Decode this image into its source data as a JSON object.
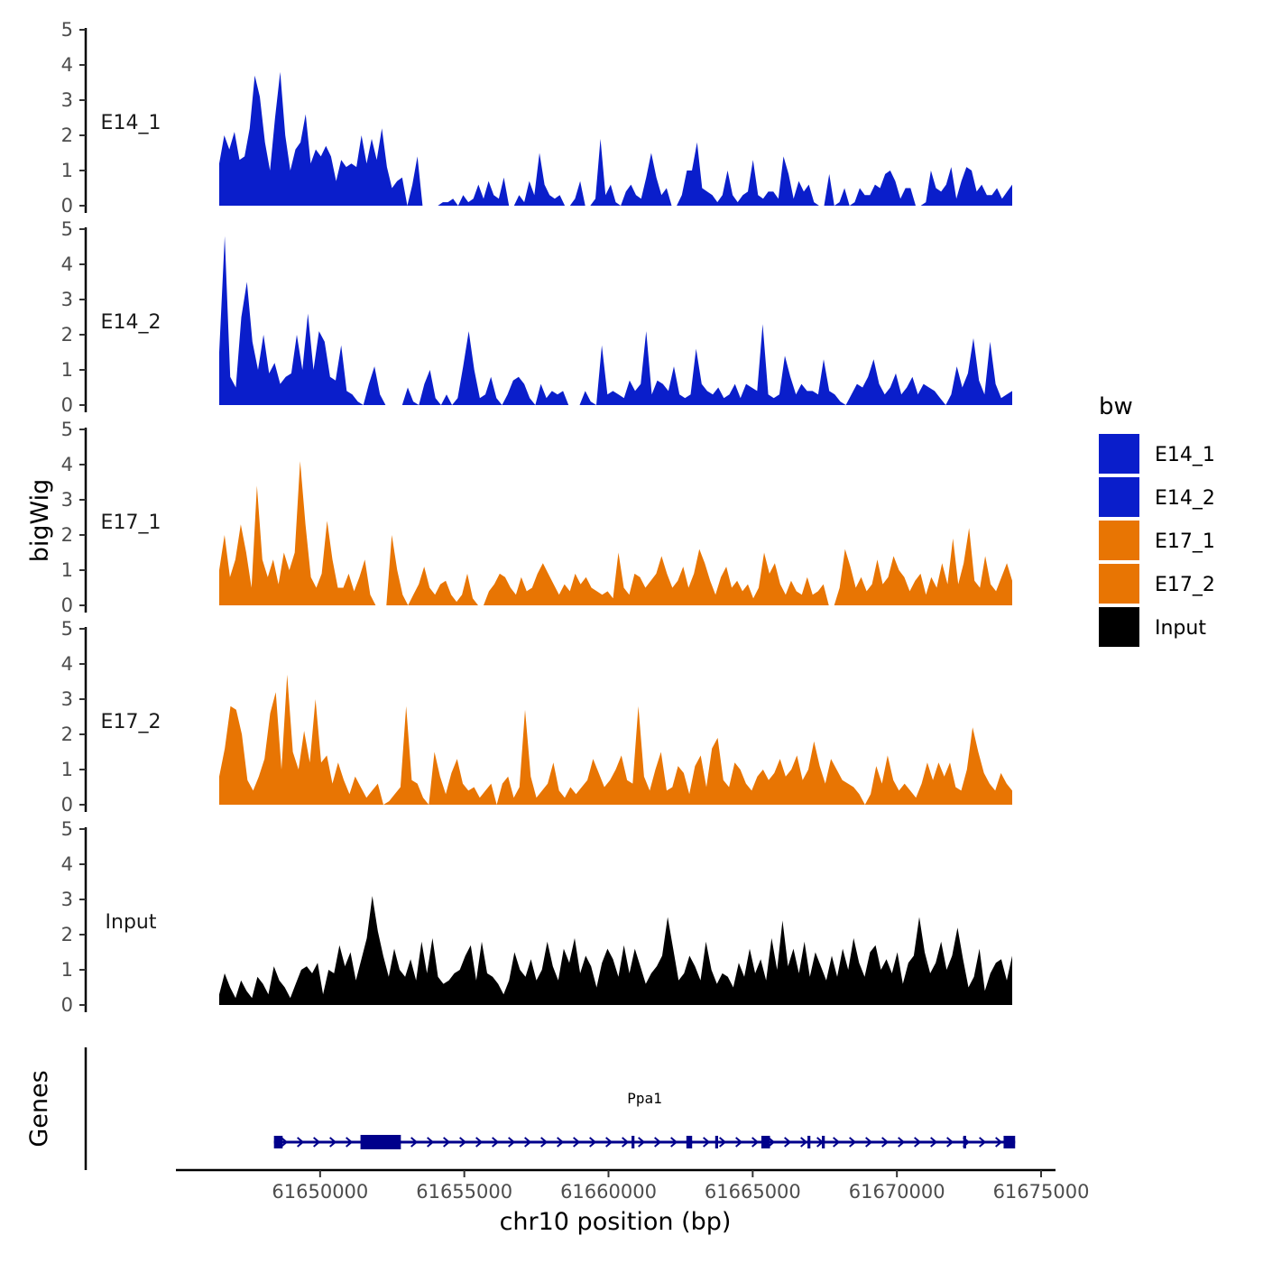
{
  "chart_data": {
    "type": "area",
    "ylabel": "bigWig",
    "xlabel": "chr10 position (bp)",
    "ylim": [
      0,
      5
    ],
    "yticks": [
      "0",
      "1",
      "2",
      "3",
      "4",
      "5"
    ],
    "xlim": [
      61645000,
      61675500
    ],
    "x_start": 61646500,
    "x_end": 61674000,
    "xticks": [
      61650000,
      61655000,
      61660000,
      61665000,
      61670000,
      61675000
    ],
    "xtick_labels": [
      "61650000",
      "61655000",
      "61660000",
      "61665000",
      "61670000",
      "61675000"
    ],
    "legend": {
      "title": "bw",
      "position": "right",
      "entries": [
        {
          "label": "E14_1",
          "color": "#0A1ECB"
        },
        {
          "label": "E14_2",
          "color": "#0A1ECB"
        },
        {
          "label": "E17_1",
          "color": "#E87503"
        },
        {
          "label": "E17_2",
          "color": "#E87503"
        },
        {
          "label": "Input",
          "color": "#000000"
        }
      ]
    },
    "series": [
      {
        "name": "E14_1",
        "color": "#0A1ECB",
        "values": [
          1.2,
          2.0,
          1.6,
          2.1,
          1.3,
          1.4,
          2.2,
          3.7,
          3.1,
          1.8,
          1.0,
          2.5,
          3.8,
          2.0,
          1.0,
          1.6,
          1.8,
          2.6,
          1.2,
          1.6,
          1.4,
          1.7,
          1.4,
          0.7,
          1.3,
          1.1,
          1.2,
          1.1,
          2.0,
          1.2,
          1.9,
          1.3,
          2.2,
          1.1,
          0.5,
          0.7,
          0.8,
          0,
          0.6,
          1.4,
          0,
          0,
          0,
          0,
          0.1,
          0.1,
          0.2,
          0,
          0.3,
          0.1,
          0.2,
          0.6,
          0.2,
          0.7,
          0.3,
          0.2,
          0.8,
          0,
          0,
          0.3,
          0.1,
          0.7,
          0.3,
          1.5,
          0.6,
          0.3,
          0.2,
          0.3,
          0,
          0,
          0.2,
          0.7,
          0,
          0,
          0.2,
          1.9,
          0.3,
          0.6,
          0.1,
          0,
          0.4,
          0.6,
          0.3,
          0.2,
          0.8,
          1.5,
          0.8,
          0.3,
          0.5,
          0,
          0,
          0.3,
          1.0,
          1.0,
          1.8,
          0.5,
          0.4,
          0.3,
          0.1,
          0.3,
          1.0,
          0.3,
          0.1,
          0.3,
          0.4,
          1.3,
          0.3,
          0.2,
          0.4,
          0.4,
          0.2,
          1.4,
          0.9,
          0.2,
          0.7,
          0.4,
          0.6,
          0.1,
          0,
          0,
          0.9,
          0,
          0.1,
          0.5,
          0,
          0.1,
          0.5,
          0.3,
          0.3,
          0.6,
          0.5,
          0.9,
          1.0,
          0.7,
          0.2,
          0.5,
          0.5,
          0,
          0,
          0.1,
          1.0,
          0.5,
          0.4,
          0.6,
          1.1,
          0.2,
          0.7,
          1.1,
          1.0,
          0.4,
          0.6,
          0.3,
          0.3,
          0.5,
          0.2,
          0.4,
          0.6
        ]
      },
      {
        "name": "E14_2",
        "color": "#0A1ECB",
        "values": [
          1.5,
          4.8,
          0.8,
          0.5,
          2.5,
          3.5,
          1.8,
          1.0,
          2.0,
          0.9,
          1.2,
          0.6,
          0.8,
          0.9,
          2.0,
          1.0,
          2.6,
          1.0,
          2.1,
          1.8,
          0.8,
          0.7,
          1.7,
          0.4,
          0.3,
          0.1,
          0,
          0.6,
          1.1,
          0.3,
          0,
          0,
          0,
          0,
          0.5,
          0.1,
          0,
          0.6,
          1.0,
          0.2,
          0,
          0.3,
          0,
          0.2,
          1.1,
          2.1,
          1.0,
          0.2,
          0.3,
          0.8,
          0.2,
          0,
          0.3,
          0.7,
          0.8,
          0.6,
          0.2,
          0,
          0.6,
          0.2,
          0.4,
          0.3,
          0.4,
          0,
          0,
          0,
          0.4,
          0.1,
          0,
          1.7,
          0.3,
          0.4,
          0.3,
          0.2,
          0.7,
          0.4,
          0.6,
          2.1,
          0.3,
          0.7,
          0.6,
          0.4,
          1.1,
          0.3,
          0.2,
          0.3,
          1.6,
          0.6,
          0.4,
          0.3,
          0.5,
          0.2,
          0.3,
          0.6,
          0.2,
          0.6,
          0.5,
          0.4,
          2.3,
          0.3,
          0.2,
          0.3,
          1.4,
          0.8,
          0.3,
          0.6,
          0.4,
          0.4,
          0.3,
          1.3,
          0.4,
          0.3,
          0.1,
          0,
          0.3,
          0.6,
          0.5,
          0.8,
          1.3,
          0.6,
          0.3,
          0.5,
          0.9,
          0.3,
          0.5,
          0.8,
          0.3,
          0.6,
          0.5,
          0.4,
          0.2,
          0,
          0.3,
          1.1,
          0.5,
          0.9,
          1.9,
          0.7,
          0.3,
          1.8,
          0.6,
          0.2,
          0.3,
          0.4
        ]
      },
      {
        "name": "E17_1",
        "color": "#E87503",
        "values": [
          1.0,
          2.0,
          0.8,
          1.3,
          2.3,
          1.5,
          0.5,
          3.4,
          1.3,
          0.8,
          1.3,
          0.6,
          1.5,
          1.0,
          1.5,
          4.1,
          2.3,
          0.8,
          0.5,
          0.9,
          2.4,
          1.3,
          0.5,
          0.5,
          0.9,
          0.4,
          0.8,
          1.3,
          0.3,
          0,
          0,
          0,
          2.0,
          1.0,
          0.3,
          0,
          0.3,
          0.6,
          1.1,
          0.5,
          0.3,
          0.6,
          0.7,
          0.3,
          0.1,
          0.3,
          0.9,
          0.2,
          0,
          0,
          0.4,
          0.6,
          0.9,
          0.8,
          0.5,
          0.3,
          0.8,
          0.4,
          0.5,
          0.9,
          1.2,
          0.9,
          0.6,
          0.3,
          0.6,
          0.4,
          0.9,
          0.6,
          0.8,
          0.5,
          0.4,
          0.3,
          0.4,
          0.2,
          1.5,
          0.5,
          0.3,
          0.9,
          0.8,
          0.5,
          0.7,
          0.9,
          1.4,
          0.9,
          0.5,
          0.7,
          1.1,
          0.5,
          0.9,
          1.6,
          1.2,
          0.7,
          0.3,
          0.8,
          1.1,
          0.5,
          0.7,
          0.4,
          0.6,
          0.2,
          0.5,
          1.5,
          0.9,
          1.2,
          0.6,
          0.3,
          0.7,
          0.4,
          0.3,
          0.8,
          0.3,
          0.4,
          0.6,
          0,
          0,
          0.5,
          1.6,
          1.1,
          0.5,
          0.8,
          0.4,
          0.6,
          1.3,
          0.6,
          0.8,
          1.4,
          1.0,
          0.8,
          0.4,
          0.7,
          0.9,
          0.3,
          0.8,
          0.5,
          1.2,
          0.6,
          1.9,
          0.6,
          1.2,
          2.2,
          0.7,
          0.5,
          1.4,
          0.6,
          0.4,
          0.8,
          1.2,
          0.7
        ]
      },
      {
        "name": "E17_2",
        "color": "#E87503",
        "values": [
          0.8,
          1.6,
          2.8,
          2.7,
          2.0,
          0.7,
          0.4,
          0.8,
          1.3,
          2.6,
          3.2,
          1.0,
          3.7,
          1.5,
          1.0,
          2.1,
          1.2,
          3.0,
          1.2,
          1.4,
          0.6,
          1.2,
          0.7,
          0.3,
          0.8,
          0.5,
          0.2,
          0.4,
          0.6,
          0,
          0.1,
          0.3,
          0.5,
          2.8,
          0.7,
          0.6,
          0.2,
          0,
          1.5,
          0.8,
          0.3,
          0.9,
          1.3,
          0.6,
          0.4,
          0.5,
          0.2,
          0.4,
          0.6,
          0,
          0.6,
          0.8,
          0.2,
          0.5,
          2.7,
          0.8,
          0.2,
          0.4,
          0.6,
          1.2,
          0.4,
          0.2,
          0.5,
          0.3,
          0.5,
          0.7,
          1.3,
          0.9,
          0.5,
          0.7,
          1.0,
          1.4,
          0.7,
          0.6,
          2.8,
          0.8,
          0.4,
          1.0,
          1.5,
          0.4,
          0.5,
          1.1,
          0.9,
          0.3,
          1.1,
          1.4,
          0.5,
          1.6,
          1.9,
          0.7,
          0.5,
          1.2,
          1.0,
          0.6,
          0.4,
          0.8,
          1.0,
          0.7,
          0.9,
          1.3,
          0.8,
          1.0,
          1.4,
          0.7,
          1.0,
          1.8,
          1.1,
          0.6,
          1.3,
          1.0,
          0.7,
          0.6,
          0.5,
          0.3,
          0,
          0.3,
          1.1,
          0.6,
          1.4,
          0.7,
          0.4,
          0.6,
          0.4,
          0.2,
          0.6,
          1.2,
          0.7,
          1.2,
          0.8,
          1.2,
          0.5,
          0.4,
          1.0,
          2.2,
          1.5,
          0.9,
          0.6,
          0.4,
          0.9,
          0.6,
          0.4
        ]
      },
      {
        "name": "Input",
        "color": "#000000",
        "values": [
          0.3,
          0.9,
          0.5,
          0.2,
          0.7,
          0.4,
          0.2,
          0.8,
          0.6,
          0.3,
          1.1,
          0.7,
          0.5,
          0.2,
          0.6,
          1.0,
          1.1,
          0.9,
          1.2,
          0.3,
          1.0,
          0.9,
          1.7,
          1.1,
          1.5,
          0.7,
          1.3,
          1.9,
          3.1,
          2.1,
          1.4,
          0.8,
          1.6,
          1.0,
          0.8,
          1.3,
          0.7,
          1.8,
          0.9,
          1.9,
          0.8,
          0.6,
          0.7,
          0.9,
          1.0,
          1.4,
          1.7,
          0.7,
          1.8,
          0.9,
          0.8,
          0.6,
          0.3,
          0.7,
          1.5,
          1.0,
          0.8,
          1.3,
          0.7,
          1.0,
          1.8,
          1.1,
          0.7,
          1.6,
          1.2,
          1.9,
          0.9,
          1.4,
          1.1,
          0.5,
          1.2,
          1.6,
          1.3,
          0.8,
          1.7,
          0.9,
          1.6,
          1.1,
          0.6,
          0.9,
          1.1,
          1.4,
          2.5,
          1.6,
          0.7,
          0.9,
          1.4,
          1.1,
          0.7,
          1.8,
          1.0,
          0.6,
          0.9,
          0.8,
          0.5,
          1.2,
          0.8,
          1.6,
          0.9,
          1.3,
          0.7,
          1.9,
          1.0,
          2.4,
          1.1,
          1.6,
          0.9,
          1.8,
          0.8,
          1.5,
          1.1,
          0.7,
          1.4,
          0.8,
          1.6,
          1.0,
          1.9,
          1.2,
          0.8,
          1.5,
          1.7,
          1.0,
          1.3,
          0.9,
          1.5,
          0.6,
          1.2,
          1.4,
          2.5,
          1.5,
          0.9,
          1.2,
          1.8,
          1.0,
          1.4,
          2.2,
          1.3,
          0.5,
          0.8,
          1.6,
          0.4,
          0.9,
          1.2,
          1.3,
          0.7,
          1.4
        ]
      }
    ],
    "genes_track": {
      "label": "Genes",
      "gene_name": "Ppa1",
      "start": 61648400,
      "end": 61674100,
      "exons": [
        [
          61648400,
          61648700
        ],
        [
          61651400,
          61652800
        ],
        [
          61660800,
          61660900
        ],
        [
          61662700,
          61662900
        ],
        [
          61663700,
          61663800
        ],
        [
          61665300,
          61665600
        ],
        [
          61666900,
          61667000
        ],
        [
          61667400,
          61667500
        ],
        [
          61672300,
          61672400
        ],
        [
          61673700,
          61674100
        ]
      ],
      "thick_exon": [
        61651400,
        61652800
      ]
    }
  }
}
